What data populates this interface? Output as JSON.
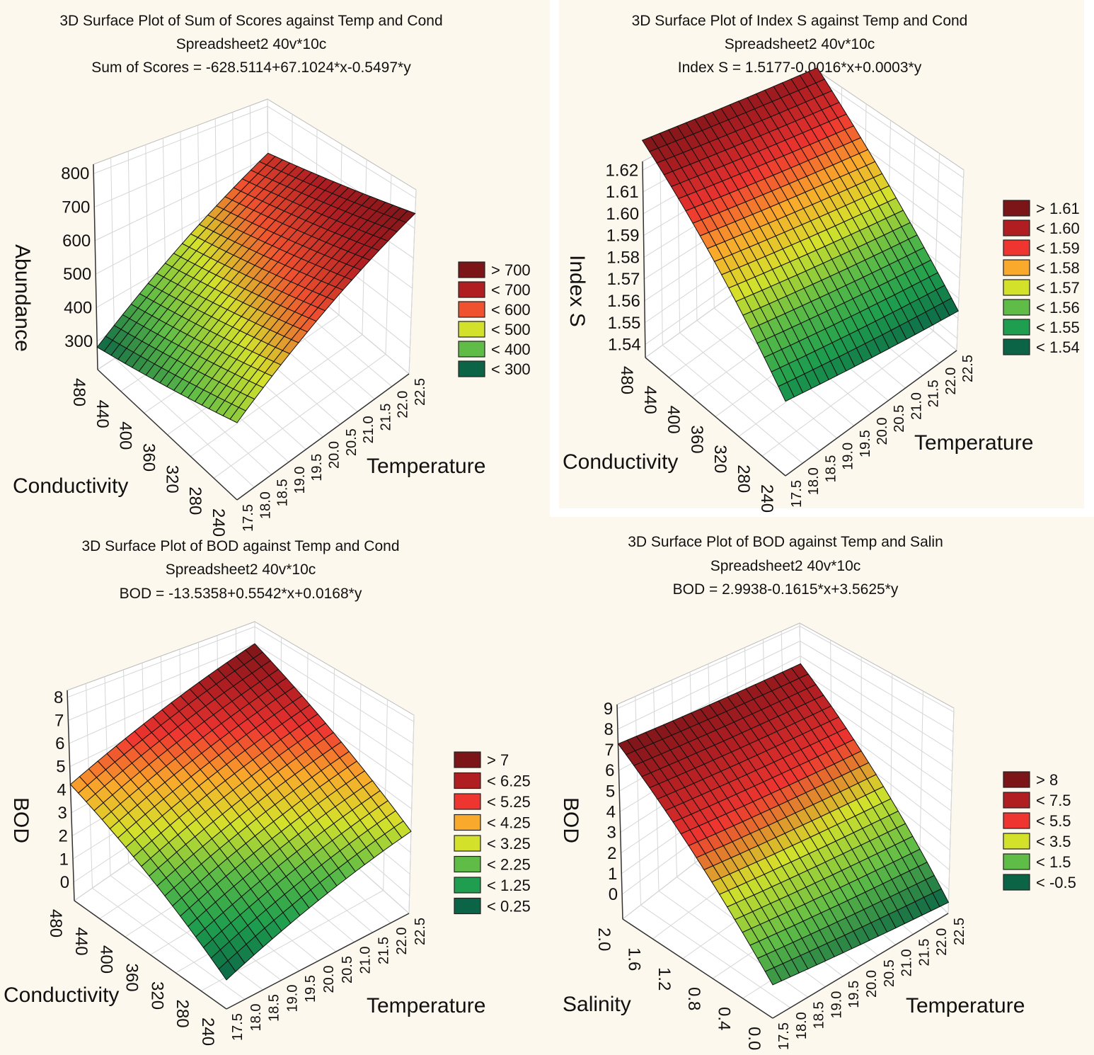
{
  "chart_data": [
    {
      "type": "surface",
      "title": [
        "3D Surface Plot of Sum of Scores against Temp and Cond",
        "Spreadsheet2 40v*10c",
        "Sum of Scores = -628.5114+67.1024*x-0.5497*y"
      ],
      "formula": {
        "intercept": -628.5114,
        "x": 67.1024,
        "y": -0.5497
      },
      "xaxis": {
        "label": "Temperature",
        "range": [
          17.5,
          22.5
        ],
        "ticks": [
          "17.5",
          "18.0",
          "18.5",
          "19.0",
          "19.5",
          "20.0",
          "20.5",
          "21.0",
          "21.5",
          "22.0",
          "22.5"
        ]
      },
      "yaxis": {
        "label": "Conductivity",
        "range": [
          240,
          480
        ],
        "ticks": [
          "240",
          "280",
          "320",
          "360",
          "400",
          "440",
          "480"
        ]
      },
      "zaxis": {
        "label": "Abundance",
        "zlim": [
          215,
          828
        ],
        "ticks": [
          "300",
          "400",
          "500",
          "600",
          "700",
          "800"
        ]
      },
      "legend": {
        "labels": [
          "> 700",
          "< 700",
          "< 600",
          "< 500",
          "< 400",
          "< 300"
        ],
        "colors": [
          "#7b1518",
          "#b01e22",
          "#f0512f",
          "#d4e12b",
          "#5ebc47",
          "#0b6446"
        ]
      }
    },
    {
      "type": "surface",
      "title": [
        "3D Surface Plot of Index S against Temp and Cond",
        "Spreadsheet2 40v*10c",
        "Index S = 1.5177-0.0016*x+0.0003*y"
      ],
      "formula": {
        "intercept": 1.5177,
        "x": -0.0016,
        "y": 0.0003
      },
      "xaxis": {
        "label": "Temperature",
        "range": [
          17.5,
          22.5
        ],
        "ticks": [
          "17.5",
          "18.0",
          "18.5",
          "19.0",
          "19.5",
          "20.0",
          "20.5",
          "21.0",
          "21.5",
          "22.0",
          "22.5"
        ]
      },
      "yaxis": {
        "label": "Conductivity",
        "range": [
          240,
          480
        ],
        "ticks": [
          "240",
          "280",
          "320",
          "360",
          "400",
          "440",
          "480"
        ]
      },
      "zaxis": {
        "label": "Index S",
        "zlim": [
          1.534,
          1.624
        ],
        "ticks": [
          "1.54",
          "1.55",
          "1.56",
          "1.57",
          "1.58",
          "1.59",
          "1.60",
          "1.61",
          "1.62"
        ]
      },
      "legend": {
        "labels": [
          "> 1.61",
          "< 1.60",
          "< 1.59",
          "< 1.58",
          "< 1.57",
          "< 1.56",
          "< 1.55",
          "< 1.54"
        ],
        "colors": [
          "#7b1518",
          "#b01e22",
          "#ee3530",
          "#f9a92b",
          "#d4e12b",
          "#5ebc47",
          "#1e9e4e",
          "#0b6446"
        ]
      }
    },
    {
      "type": "surface",
      "title": [
        "3D Surface Plot of BOD against Temp and Cond",
        "Spreadsheet2 40v*10c",
        "BOD = -13.5358+0.5542*x+0.0168*y"
      ],
      "formula": {
        "intercept": -13.5358,
        "x": 0.5542,
        "y": 0.0168
      },
      "xaxis": {
        "label": "Temperature",
        "range": [
          17.5,
          22.5
        ],
        "ticks": [
          "17.5",
          "18.0",
          "18.5",
          "19.0",
          "19.5",
          "20.0",
          "20.5",
          "21.0",
          "21.5",
          "22.0",
          "22.5"
        ]
      },
      "yaxis": {
        "label": "Conductivity",
        "range": [
          240,
          480
        ],
        "ticks": [
          "240",
          "280",
          "320",
          "360",
          "400",
          "440",
          "480"
        ]
      },
      "zaxis": {
        "label": "BOD",
        "zlim": [
          -0.8,
          8.3
        ],
        "ticks": [
          "0",
          "1",
          "2",
          "3",
          "4",
          "5",
          "6",
          "7",
          "8"
        ]
      },
      "legend": {
        "labels": [
          "> 7",
          "< 6.25",
          "< 5.25",
          "< 4.25",
          "< 3.25",
          "< 2.25",
          "< 1.25",
          "< 0.25"
        ],
        "colors": [
          "#7b1518",
          "#b01e22",
          "#ee3530",
          "#f9a92b",
          "#d4e12b",
          "#5ebc47",
          "#1e9e4e",
          "#0b6446"
        ]
      }
    },
    {
      "type": "surface",
      "title": [
        "3D Surface Plot of BOD against Temp and Salin",
        "Spreadsheet2 40v*10c",
        "BOD = 2.9938-0.1615*x+3.5625*y"
      ],
      "formula": {
        "intercept": 2.9938,
        "x": -0.1615,
        "y": 3.5625
      },
      "xaxis": {
        "label": "Temperature",
        "range": [
          17.5,
          22.5
        ],
        "ticks": [
          "17.5",
          "18.0",
          "18.5",
          "19.0",
          "19.5",
          "20.0",
          "20.5",
          "21.0",
          "21.5",
          "22.0",
          "22.5"
        ]
      },
      "yaxis": {
        "label": "Salinity",
        "range": [
          0.0,
          2.0
        ],
        "ticks": [
          "0.0",
          "0.4",
          "0.8",
          "1.2",
          "1.6",
          "2.0"
        ]
      },
      "zaxis": {
        "label": "BOD",
        "zlim": [
          -1.2,
          9.2
        ],
        "ticks": [
          "0",
          "1",
          "2",
          "3",
          "4",
          "5",
          "6",
          "7",
          "8",
          "9"
        ]
      },
      "legend": {
        "labels": [
          "> 8",
          "< 7.5",
          "< 5.5",
          "< 3.5",
          "< 1.5",
          "< -0.5"
        ],
        "colors": [
          "#7b1518",
          "#b01e22",
          "#ee3530",
          "#d4e12b",
          "#5ebc47",
          "#0b6446"
        ]
      }
    }
  ]
}
